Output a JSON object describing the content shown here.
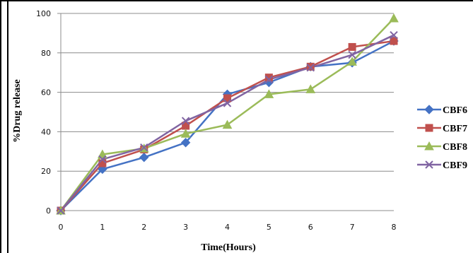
{
  "chart_data": {
    "type": "line",
    "title": "",
    "xlabel": "Time(Hours)",
    "ylabel": "%Drug release",
    "x": [
      0,
      1,
      2,
      3,
      4,
      5,
      6,
      7,
      8
    ],
    "xlim": [
      0,
      8
    ],
    "ylim": [
      0,
      100
    ],
    "yticks": [
      0,
      20,
      40,
      60,
      80,
      100
    ],
    "grid": "horizontal",
    "legend_position": "right",
    "series": [
      {
        "name": "CBF6",
        "color": "#4472C4",
        "marker": "diamond",
        "values": [
          0,
          21,
          27,
          34.5,
          59,
          65,
          73,
          75,
          86
        ]
      },
      {
        "name": "CBF7",
        "color": "#C0504D",
        "marker": "square",
        "values": [
          0,
          24,
          31,
          43,
          57,
          67.5,
          73,
          83,
          86
        ]
      },
      {
        "name": "CBF8",
        "color": "#9BBB59",
        "marker": "triangle",
        "values": [
          0,
          28.5,
          31.5,
          39,
          43.5,
          59,
          61.5,
          75.5,
          97.5
        ]
      },
      {
        "name": "CBF9",
        "color": "#8064A2",
        "marker": "x",
        "values": [
          0,
          26,
          32,
          45.5,
          54.5,
          66.5,
          72.5,
          79,
          89
        ]
      }
    ]
  }
}
